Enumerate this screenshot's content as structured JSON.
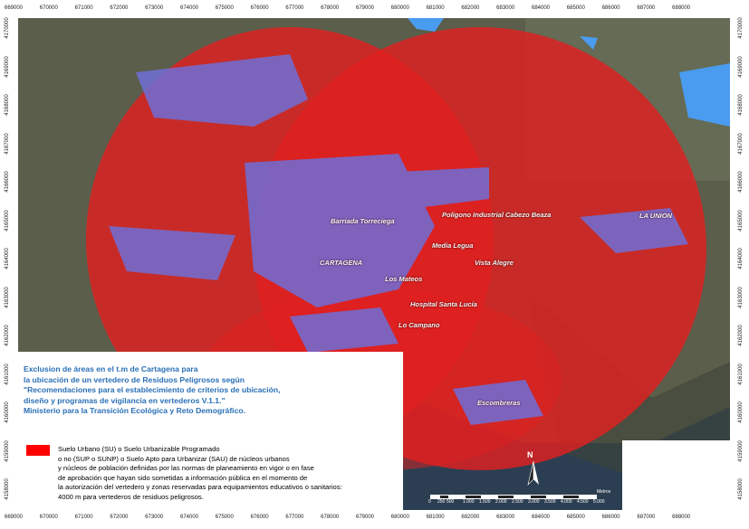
{
  "colors": {
    "exclusion_zone": "#e02020",
    "urban_areas": "#6e6ed8",
    "water_bodies": "#4a9cf0",
    "legend_title": "#2a6fb7",
    "legend_swatch": "#ff0000"
  },
  "grid_labels": {
    "eastings": [
      "669000",
      "670000",
      "671000",
      "672000",
      "673000",
      "674000",
      "675000",
      "676000",
      "677000",
      "678000",
      "679000",
      "680000",
      "681000",
      "682000",
      "683000",
      "684000",
      "685000",
      "686000",
      "687000",
      "688000"
    ],
    "northings": [
      "4170000",
      "4169000",
      "4168000",
      "4167000",
      "4166000",
      "4165000",
      "4164000",
      "4163000",
      "4162000",
      "4161000",
      "4160000",
      "4159000",
      "4158000"
    ]
  },
  "places": {
    "barriada_torreciega": "Barriada Torreciega",
    "poligono": "Polígono Industrial Cabezo Beaza",
    "la_union": "LA UNION",
    "media_legua": "Media Legua",
    "cartagena": "CARTAGENA",
    "vista_alegre": "Vista Alegre",
    "los_mateos": "Los Mateos",
    "hospital": "Hospital Santa Lucía",
    "lo_campano": "Lo Campano",
    "escombreras": "Escombreras"
  },
  "legend": {
    "title_lines": [
      "Exclusion de áreas en el t.m de Cartagena para",
      "la ubicación de un vertedero de Residuos Peligrosos según",
      "\"Recomendaciones para el establecimiento de criterios de ubicación,",
      "diseño y programas de vigilancia en vertederos V.1.1.\"",
      "Ministerio para la Transición Ecológica y Reto Demográfico."
    ],
    "item_lines": [
      "Suelo Urbano (SU) o Suelo Urbanizable Programado",
      "o no (SUP o SUNP) o Suelo Apto para Urbanizar (SAU) de núcleos urbanos",
      "y núcleos de población definidas por las normas de planeamiento en vigor o en fase",
      "de aprobación que hayan sido sometidas a información pública en el momento de",
      "la autorización del vertedero y zonas reservadas para equipamientos educativos o sanitarios:",
      "4000 m para vertederos de residuos peligrosos."
    ]
  },
  "north_arrow": {
    "label": "N"
  },
  "scale": {
    "labels": [
      "0",
      "250",
      "500",
      "1.000",
      "1.500",
      "2.000",
      "2.500",
      "3.000",
      "3.500",
      "4.000",
      "4.500",
      "5.000"
    ],
    "unit": "Metros"
  }
}
